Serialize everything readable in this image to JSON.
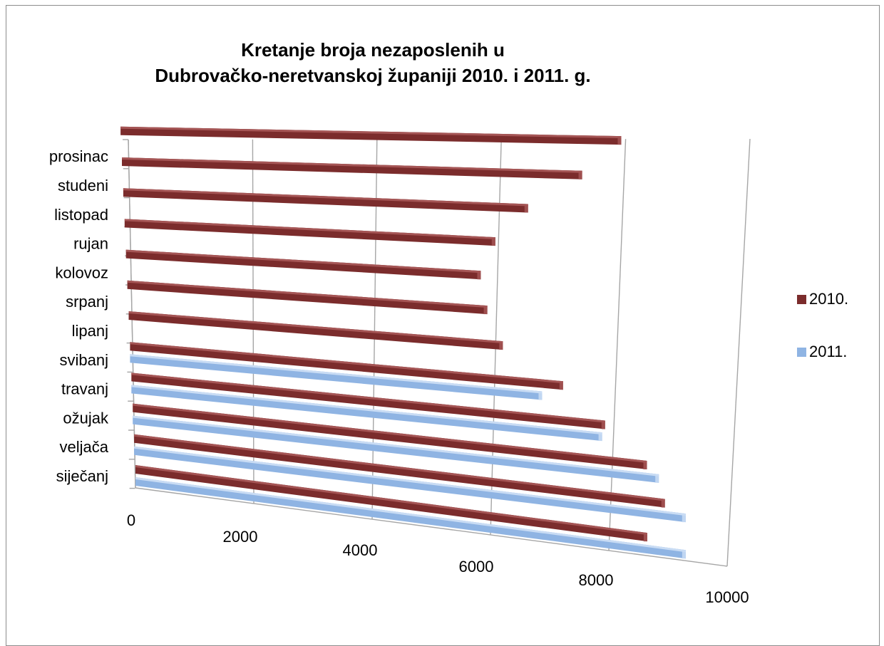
{
  "chart_data": {
    "type": "bar",
    "orientation": "horizontal",
    "style": "3d-perspective",
    "title": "Kretanje broja nezaposlenih u Dubrovačko-neretvanskoj županiji 2010. i 2011. g.",
    "title_lines": [
      "Kretanje broja nezaposlenih u",
      "Dubrovačko-neretvanskoj županiji 2010. i 2011. g."
    ],
    "categories": [
      "siječanj",
      "veljača",
      "ožujak",
      "travanj",
      "svibanj",
      "lipanj",
      "srpanj",
      "kolovoz",
      "rujan",
      "listopad",
      "studeni",
      "prosinac"
    ],
    "series": [
      {
        "name": "2010.",
        "color": "#7b2c2c",
        "values": [
          8650,
          8950,
          8650,
          7950,
          7250,
          6250,
          6000,
          5900,
          6150,
          6700,
          7600,
          8250
        ]
      },
      {
        "name": "2011.",
        "color": "#8fb4e3",
        "values": [
          9300,
          9300,
          8850,
          7900,
          6900,
          null,
          null,
          null,
          null,
          null,
          null,
          null
        ]
      }
    ],
    "x_ticks": [
      "0",
      "2000",
      "4000",
      "6000",
      "8000",
      "10000"
    ],
    "xlim": [
      0,
      10000
    ],
    "grid": true,
    "legend_position": "right"
  }
}
